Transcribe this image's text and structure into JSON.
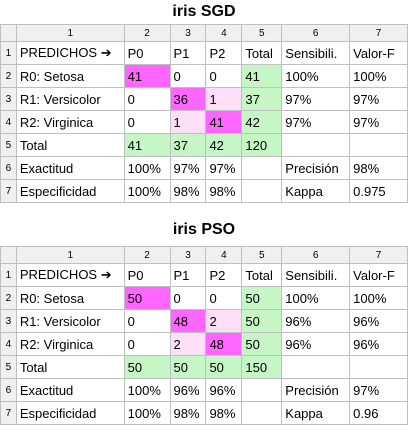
{
  "tables": [
    {
      "title": "iris SGD",
      "col_numbers": [
        "1",
        "2",
        "3",
        "4",
        "5",
        "6",
        "7"
      ],
      "rows": [
        {
          "num": "1",
          "cells": [
            "PREDICHOS ➔",
            "P0",
            "P1",
            "P2",
            "Total",
            "Sensibili.",
            "Valor-F"
          ]
        },
        {
          "num": "2",
          "cells": [
            "R0: Setosa",
            "41",
            "0",
            "0",
            "41",
            "100%",
            "100%"
          ]
        },
        {
          "num": "3",
          "cells": [
            "R1: Versicolor",
            "0",
            "36",
            "1",
            "37",
            "97%",
            "97%"
          ]
        },
        {
          "num": "4",
          "cells": [
            "R2: Virginica",
            "0",
            "1",
            "41",
            "42",
            "97%",
            "97%"
          ]
        },
        {
          "num": "5",
          "cells": [
            "Total",
            "41",
            "37",
            "42",
            "120",
            "",
            ""
          ]
        },
        {
          "num": "6",
          "cells": [
            "Exactitud",
            "100%",
            "97%",
            "97%",
            "",
            "Precisión",
            "98%"
          ]
        },
        {
          "num": "7",
          "cells": [
            "Especificidad",
            "100%",
            "98%",
            "98%",
            "",
            "Kappa",
            "0.975"
          ]
        }
      ]
    },
    {
      "title": "iris PSO",
      "col_numbers": [
        "1",
        "2",
        "3",
        "4",
        "5",
        "6",
        "7"
      ],
      "rows": [
        {
          "num": "1",
          "cells": [
            "PREDICHOS ➔",
            "P0",
            "P1",
            "P2",
            "Total",
            "Sensibili.",
            "Valor-F"
          ]
        },
        {
          "num": "2",
          "cells": [
            "R0: Setosa",
            "50",
            "0",
            "0",
            "50",
            "100%",
            "100%"
          ]
        },
        {
          "num": "3",
          "cells": [
            "R1: Versicolor",
            "0",
            "48",
            "2",
            "50",
            "96%",
            "96%"
          ]
        },
        {
          "num": "4",
          "cells": [
            "R2: Virginica",
            "0",
            "2",
            "48",
            "50",
            "96%",
            "96%"
          ]
        },
        {
          "num": "5",
          "cells": [
            "Total",
            "50",
            "50",
            "50",
            "150",
            "",
            ""
          ]
        },
        {
          "num": "6",
          "cells": [
            "Exactitud",
            "100%",
            "96%",
            "96%",
            "",
            "Precisión",
            "97%"
          ]
        },
        {
          "num": "7",
          "cells": [
            "Especificidad",
            "100%",
            "98%",
            "98%",
            "",
            "Kappa",
            "0.96"
          ]
        }
      ]
    }
  ],
  "colors": {
    "diagonal": "#ff66ff",
    "off_diagonal": "#fde0f8",
    "totals": "#c6f5c6",
    "header_bg": "#f0f0f0",
    "grid": "#bfbfbf"
  }
}
